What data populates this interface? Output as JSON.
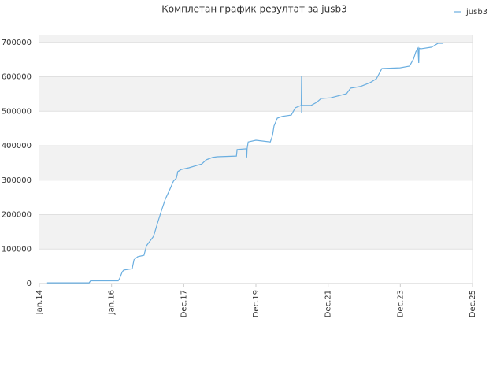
{
  "chart_data": {
    "type": "line",
    "title": "Комплетан график резултат за jusb3",
    "x": [
      2014.21,
      2015.35,
      2015.39,
      2016.14,
      2016.18,
      2016.25,
      2016.29,
      2016.52,
      2016.57,
      2016.67,
      2016.84,
      2016.91,
      2017.1,
      2017.21,
      2017.31,
      2017.42,
      2017.53,
      2017.64,
      2017.72,
      2017.76,
      2017.85,
      2018.06,
      2018.28,
      2018.41,
      2018.53,
      2018.7,
      2018.83,
      2019.35,
      2019.37,
      2019.62,
      2019.63,
      2019.64,
      2019.67,
      2019.88,
      2020.27,
      2020.33,
      2020.37,
      2020.46,
      2020.59,
      2020.84,
      2020.95,
      2021.11,
      2021.12,
      2021.12,
      2021.13,
      2021.38,
      2021.53,
      2021.65,
      2021.91,
      2022.34,
      2022.45,
      2022.72,
      2022.98,
      2023.15,
      2023.3,
      2023.79,
      2024.05,
      2024.16,
      2024.22,
      2024.28,
      2024.3,
      2024.31,
      2024.35,
      2024.65,
      2024.82,
      2024.97
    ],
    "series": [
      {
        "name": "jusb3",
        "color": "#6aaee0",
        "values": [
          2000,
          2000,
          8000,
          8000,
          15000,
          34000,
          39000,
          43000,
          69000,
          78000,
          82000,
          110000,
          137000,
          176000,
          210000,
          245000,
          270000,
          297000,
          306000,
          325000,
          331000,
          336000,
          343000,
          347000,
          359000,
          366000,
          368000,
          370000,
          389000,
          391000,
          366000,
          391000,
          411000,
          416000,
          411000,
          430000,
          457000,
          480000,
          485000,
          489000,
          510000,
          517000,
          603000,
          496000,
          517000,
          517000,
          526000,
          537000,
          539000,
          551000,
          567000,
          572000,
          583000,
          594000,
          624000,
          626000,
          631000,
          652000,
          672000,
          683000,
          640000,
          683000,
          681000,
          686000,
          697000,
          697000
        ]
      }
    ],
    "xlim": [
      2014.0,
      2025.76
    ],
    "xticks": [
      {
        "value": 2014.0,
        "label": "Jan.14"
      },
      {
        "value": 2015.96,
        "label": "Jan.16"
      },
      {
        "value": 2017.92,
        "label": "Dec.17"
      },
      {
        "value": 2019.88,
        "label": "Dec.19"
      },
      {
        "value": 2021.84,
        "label": "Dec.21"
      },
      {
        "value": 2023.8,
        "label": "Dec.23"
      },
      {
        "value": 2025.76,
        "label": "Dec.25"
      }
    ],
    "ylim": [
      0,
      720000
    ],
    "yticks": [
      0,
      100000,
      200000,
      300000,
      400000,
      500000,
      600000,
      700000
    ],
    "grid": true,
    "legend": "top-right"
  }
}
